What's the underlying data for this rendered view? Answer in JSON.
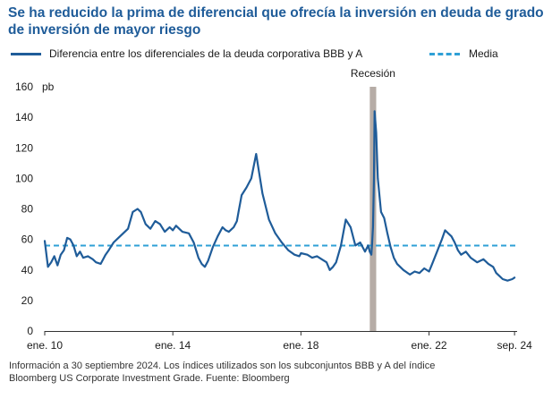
{
  "title": "Se ha reducido la prima de diferencial que ofrecía la inversión en deuda de grado de inversión de mayor riesgo",
  "legend": {
    "series_label": "Diferencia entre los diferenciales de la deuda corporativa BBB y A",
    "mean_label": "Media"
  },
  "footnote": {
    "line1": "Información a 30 septiembre 2024. Los índices utilizados son los subconjuntos BBB y A del índice",
    "line2": "Bloomberg US Corporate Investment Grade. Fuente: Bloomberg"
  },
  "colors": {
    "series": "#1f5c99",
    "mean": "#2fa0d6",
    "recession": "#b6aca6",
    "title": "#1f5c99"
  },
  "chart_data": {
    "type": "line",
    "title": "Se ha reducido la prima de diferencial que ofrecía la inversión en deuda de grado de inversión de mayor riesgo",
    "ylabel": "pb",
    "ylim": [
      0,
      160
    ],
    "yticks": [
      0,
      20,
      40,
      60,
      80,
      100,
      120,
      140,
      160
    ],
    "xlim": [
      2010.0,
      2024.75
    ],
    "xticks": [
      {
        "value": 2010.0,
        "label": "ene. 10"
      },
      {
        "value": 2014.0,
        "label": "ene. 14"
      },
      {
        "value": 2018.0,
        "label": "ene. 18"
      },
      {
        "value": 2022.0,
        "label": "ene. 22"
      },
      {
        "value": 2024.67,
        "label": "sep. 24"
      }
    ],
    "mean": 56,
    "recession": {
      "start": 2020.15,
      "end": 2020.35,
      "label": "Recesión"
    },
    "series": [
      {
        "name": "Diferencia entre los diferenciales de la deuda corporativa BBB y A",
        "x": [
          2010.0,
          2010.1,
          2010.2,
          2010.3,
          2010.4,
          2010.5,
          2010.6,
          2010.7,
          2010.8,
          2010.9,
          2011.0,
          2011.1,
          2011.2,
          2011.35,
          2011.5,
          2011.6,
          2011.75,
          2011.9,
          2012.0,
          2012.15,
          2012.3,
          2012.45,
          2012.6,
          2012.75,
          2012.9,
          2013.0,
          2013.15,
          2013.3,
          2013.45,
          2013.6,
          2013.75,
          2013.9,
          2014.0,
          2014.1,
          2014.2,
          2014.3,
          2014.5,
          2014.65,
          2014.8,
          2014.9,
          2015.0,
          2015.1,
          2015.25,
          2015.4,
          2015.55,
          2015.65,
          2015.75,
          2015.9,
          2016.0,
          2016.05,
          2016.15,
          2016.3,
          2016.45,
          2016.6,
          2016.8,
          2017.0,
          2017.2,
          2017.4,
          2017.6,
          2017.8,
          2017.95,
          2018.0,
          2018.2,
          2018.35,
          2018.5,
          2018.65,
          2018.8,
          2018.9,
          2019.0,
          2019.1,
          2019.25,
          2019.4,
          2019.55,
          2019.7,
          2019.85,
          2020.0,
          2020.1,
          2020.15,
          2020.2,
          2020.22,
          2020.25,
          2020.28,
          2020.3,
          2020.35,
          2020.4,
          2020.5,
          2020.6,
          2020.7,
          2020.8,
          2020.9,
          2021.0,
          2021.2,
          2021.4,
          2021.55,
          2021.7,
          2021.85,
          2022.0,
          2022.1,
          2022.25,
          2022.4,
          2022.5,
          2022.6,
          2022.7,
          2022.8,
          2022.9,
          2023.0,
          2023.15,
          2023.3,
          2023.5,
          2023.7,
          2023.85,
          2024.0,
          2024.1,
          2024.2,
          2024.3,
          2024.45,
          2024.6,
          2024.67
        ],
        "values": [
          59,
          42,
          45,
          49,
          43,
          50,
          53,
          61,
          60,
          56,
          49,
          52,
          48,
          49,
          47,
          45,
          44,
          50,
          53,
          58,
          61,
          64,
          67,
          78,
          80,
          78,
          70,
          67,
          72,
          70,
          65,
          68,
          66,
          69,
          67,
          65,
          64,
          58,
          48,
          44,
          42,
          46,
          55,
          62,
          68,
          66,
          65,
          68,
          72,
          78,
          89,
          94,
          100,
          116,
          90,
          73,
          64,
          58,
          53,
          50,
          49,
          51,
          50,
          48,
          49,
          47,
          45,
          40,
          42,
          45,
          56,
          73,
          68,
          56,
          58,
          52,
          56,
          52,
          50,
          56,
          68,
          100,
          144,
          130,
          100,
          78,
          74,
          64,
          55,
          48,
          44,
          40,
          37,
          39,
          38,
          41,
          39,
          44,
          52,
          60,
          66,
          64,
          62,
          58,
          53,
          50,
          52,
          48,
          45,
          47,
          44,
          42,
          38,
          36,
          34,
          33,
          34,
          35
        ]
      }
    ]
  }
}
